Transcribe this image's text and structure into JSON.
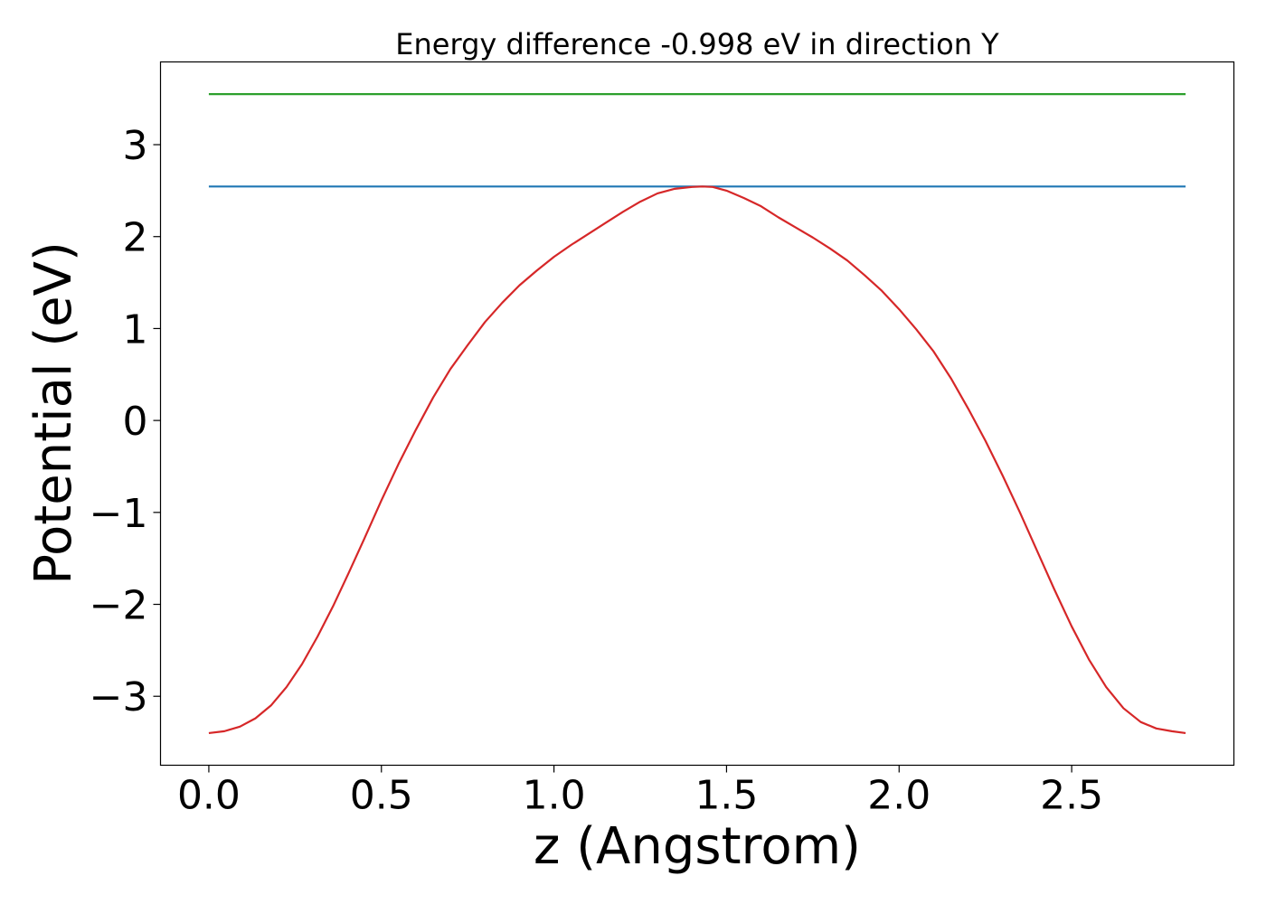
{
  "chart_data": {
    "type": "line",
    "title": "Energy difference -0.998 eV in direction Y",
    "xlabel": "z (Angstrom)",
    "ylabel": "Potential (eV)",
    "xlim": [
      -0.14,
      2.97
    ],
    "ylim": [
      -3.75,
      3.9
    ],
    "x_ticks": [
      0.0,
      0.5,
      1.0,
      1.5,
      2.0,
      2.5
    ],
    "x_tick_labels": [
      "0.0",
      "0.5",
      "1.0",
      "1.5",
      "2.0",
      "2.5"
    ],
    "y_ticks": [
      -3,
      -2,
      -1,
      0,
      1,
      2,
      3
    ],
    "y_tick_labels": [
      "−3",
      "−2",
      "−1",
      "0",
      "1",
      "2",
      "3"
    ],
    "grid": false,
    "series": [
      {
        "color": "#d62728",
        "x": [
          0.0,
          0.045,
          0.09,
          0.135,
          0.18,
          0.225,
          0.27,
          0.315,
          0.36,
          0.405,
          0.45,
          0.5,
          0.55,
          0.6,
          0.65,
          0.7,
          0.75,
          0.8,
          0.85,
          0.9,
          0.95,
          1.0,
          1.05,
          1.1,
          1.15,
          1.2,
          1.25,
          1.3,
          1.35,
          1.4,
          1.43,
          1.46,
          1.5,
          1.55,
          1.6,
          1.65,
          1.7,
          1.75,
          1.8,
          1.85,
          1.9,
          1.95,
          2.0,
          2.05,
          2.1,
          2.15,
          2.2,
          2.25,
          2.3,
          2.35,
          2.4,
          2.45,
          2.5,
          2.55,
          2.6,
          2.65,
          2.7,
          2.745,
          2.79,
          2.83
        ],
        "y": [
          -3.4,
          -3.38,
          -3.33,
          -3.24,
          -3.1,
          -2.9,
          -2.65,
          -2.35,
          -2.02,
          -1.66,
          -1.29,
          -0.87,
          -0.47,
          -0.1,
          0.25,
          0.56,
          0.82,
          1.07,
          1.28,
          1.47,
          1.63,
          1.78,
          1.91,
          2.03,
          2.15,
          2.27,
          2.38,
          2.47,
          2.52,
          2.54,
          2.545,
          2.54,
          2.5,
          2.42,
          2.33,
          2.21,
          2.1,
          1.99,
          1.87,
          1.74,
          1.58,
          1.41,
          1.21,
          0.99,
          0.75,
          0.46,
          0.13,
          -0.22,
          -0.6,
          -1.0,
          -1.42,
          -1.84,
          -2.24,
          -2.6,
          -2.9,
          -3.13,
          -3.28,
          -3.35,
          -3.38,
          -3.4
        ]
      },
      {
        "color": "#1f77b4",
        "x": [
          0.0,
          2.83
        ],
        "y": [
          2.545,
          2.545
        ]
      },
      {
        "color": "#2ca02c",
        "x": [
          0.0,
          2.83
        ],
        "y": [
          3.55,
          3.55
        ]
      }
    ]
  }
}
